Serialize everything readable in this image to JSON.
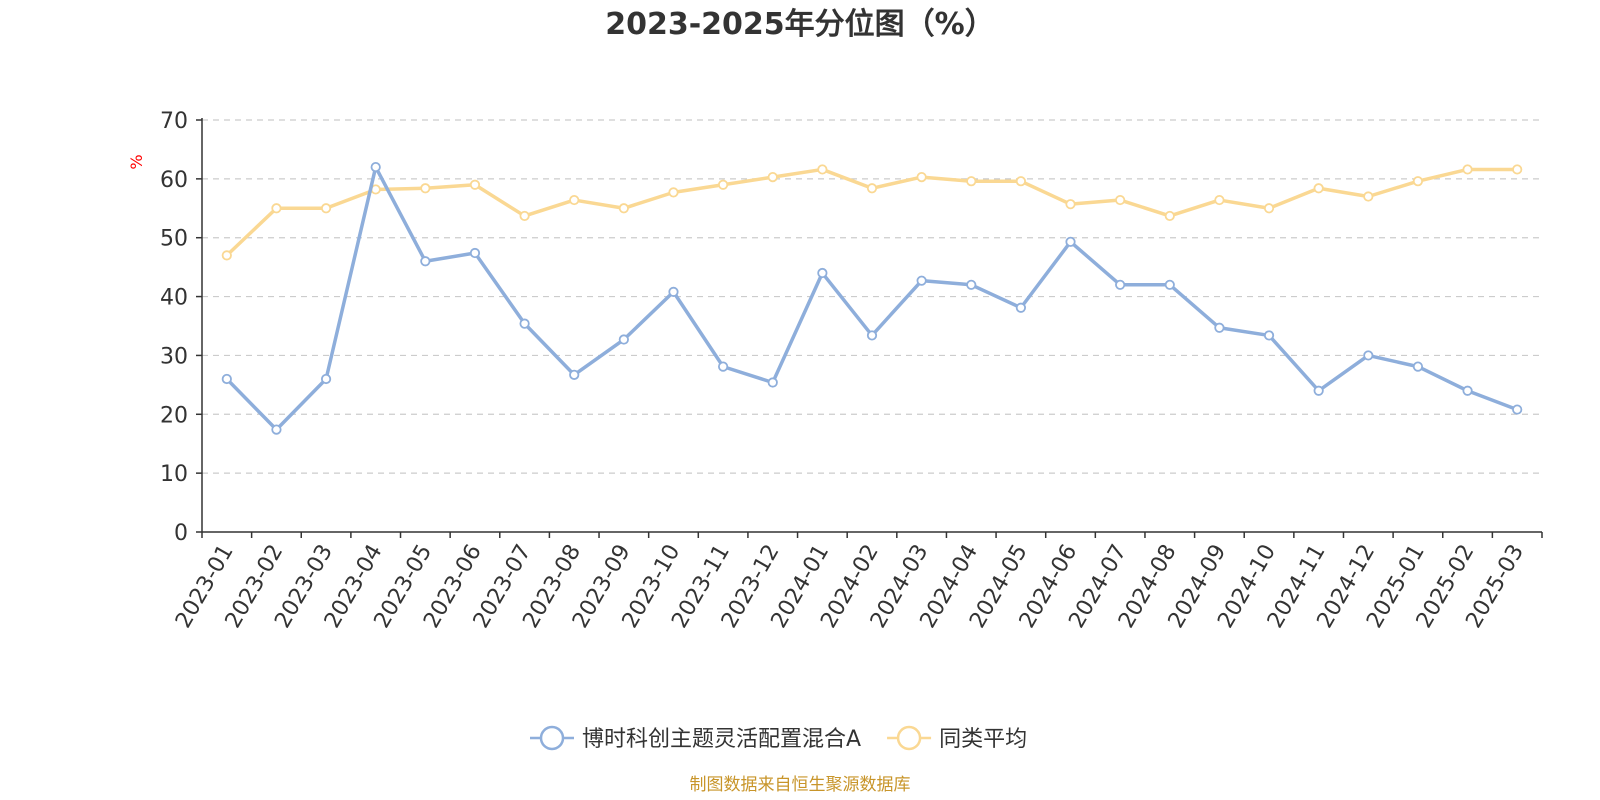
{
  "chart_data": {
    "type": "line",
    "title": "2023-2025年分位图（%）",
    "ylabel": "%",
    "xlabel": "",
    "ylim": [
      0,
      70
    ],
    "yticks": [
      0,
      10,
      20,
      30,
      40,
      50,
      60,
      70
    ],
    "grid": true,
    "legend_position": "bottom",
    "categories": [
      "2023-01",
      "2023-02",
      "2023-03",
      "2023-04",
      "2023-05",
      "2023-06",
      "2023-07",
      "2023-08",
      "2023-09",
      "2023-10",
      "2023-11",
      "2023-12",
      "2024-01",
      "2024-02",
      "2024-03",
      "2024-04",
      "2024-05",
      "2024-06",
      "2024-07",
      "2024-08",
      "2024-09",
      "2024-10",
      "2024-11",
      "2024-12",
      "2025-01",
      "2025-02",
      "2025-03"
    ],
    "series": [
      {
        "name": "博时科创主题灵活配置混合A",
        "color": "#8eaedb",
        "values": [
          26,
          17.4,
          26,
          62,
          46,
          47.4,
          35.4,
          26.7,
          32.7,
          40.8,
          28.1,
          25.4,
          44,
          33.4,
          42.7,
          42,
          38.1,
          49.3,
          42,
          42,
          34.7,
          33.4,
          24,
          30,
          28.1,
          24,
          20.8
        ]
      },
      {
        "name": "同类平均",
        "color": "#fad893",
        "values": [
          47,
          55,
          55,
          58.2,
          58.4,
          59,
          53.7,
          56.4,
          55,
          57.7,
          59,
          60.3,
          61.6,
          58.4,
          60.3,
          59.6,
          59.6,
          55.7,
          56.4,
          53.7,
          56.4,
          55,
          58.4,
          57,
          59.6,
          61.6,
          61.6
        ]
      }
    ]
  },
  "footer": {
    "source": "制图数据来自恒生聚源数据库"
  }
}
